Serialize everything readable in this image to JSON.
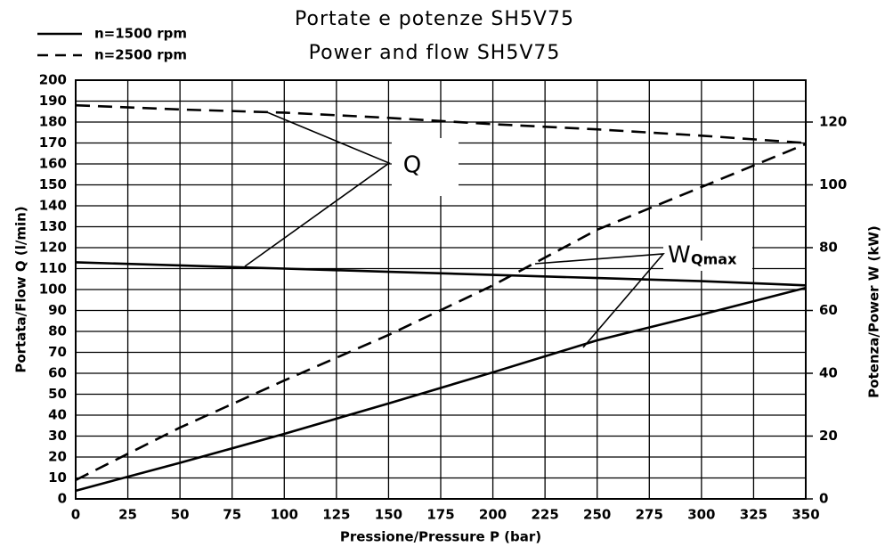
{
  "chart_data": {
    "type": "line",
    "title": "Portate e potenze SH5V75",
    "subtitle": "Power and flow SH5V75",
    "x_label": "Pressione/Pressure P (bar)",
    "y_label": "Portata/Flow Q (l/min)",
    "y2_label": "Potenza/Power W (kW)",
    "x": [
      0,
      50,
      100,
      150,
      200,
      250,
      300,
      350
    ],
    "series": [
      {
        "name": "n=1500 rpm",
        "dashed": false,
        "color": "#000000",
        "flow": [
          113,
          111.5,
          110,
          108.5,
          107,
          105.5,
          104,
          102
        ],
        "power": [
          2.6,
          11.5,
          20.7,
          30.4,
          40.3,
          50.5,
          58.7,
          67.2
        ]
      },
      {
        "name": "n=2500 rpm",
        "dashed": true,
        "color": "#000000",
        "flow": [
          188,
          186,
          184.5,
          182,
          179,
          176.5,
          173.5,
          170
        ],
        "power": [
          6,
          22.7,
          37.7,
          52.2,
          68,
          85.7,
          99.3,
          113
        ]
      }
    ],
    "annotations": [
      {
        "text": "Q"
      },
      {
        "text": "W",
        "sub": "Qmax"
      }
    ],
    "xlim": [
      0,
      350
    ],
    "xticks": [
      0,
      25,
      50,
      75,
      100,
      125,
      150,
      175,
      200,
      225,
      250,
      275,
      300,
      325,
      350
    ],
    "ylim": [
      0,
      200
    ],
    "yticks": [
      0,
      10,
      20,
      30,
      40,
      50,
      60,
      70,
      80,
      90,
      100,
      110,
      120,
      130,
      140,
      150,
      160,
      170,
      180,
      190,
      200
    ],
    "y2lim": [
      0,
      133.33
    ],
    "y2ticks": [
      0,
      20,
      40,
      60,
      80,
      100,
      120
    ],
    "grid": true,
    "legend": "top-left"
  }
}
